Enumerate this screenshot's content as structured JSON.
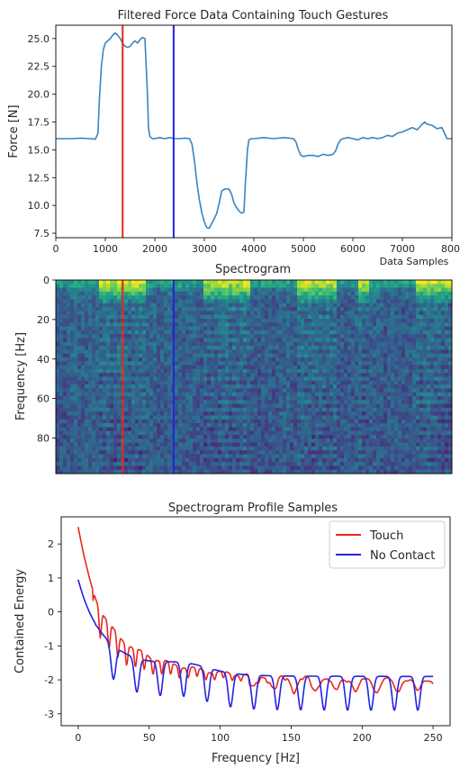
{
  "chart_data": [
    {
      "id": "force",
      "type": "line",
      "title": "Filtered Force Data Containing Touch Gestures",
      "xlabel": "Data Samples",
      "ylabel": "Force [N]",
      "xlim": [
        0,
        8000
      ],
      "ylim": [
        7.1,
        26.2
      ],
      "xticks": [
        "0",
        "1000",
        "2000",
        "3000",
        "4000",
        "5000",
        "6000",
        "7000",
        "8000"
      ],
      "yticks": [
        "7.5",
        "10.0",
        "12.5",
        "15.0",
        "17.5",
        "20.0",
        "22.5",
        "25.0"
      ],
      "grid": false,
      "series": [
        {
          "color": "#3b83bd",
          "x": [
            0,
            300,
            500,
            700,
            800,
            850,
            880,
            920,
            960,
            1000,
            1050,
            1100,
            1150,
            1200,
            1250,
            1300,
            1350,
            1400,
            1450,
            1500,
            1550,
            1600,
            1650,
            1700,
            1750,
            1800,
            1850,
            1870,
            1900,
            1950,
            2000,
            2100,
            2200,
            2300,
            2400,
            2500,
            2600,
            2700,
            2750,
            2800,
            2850,
            2900,
            2950,
            3000,
            3050,
            3100,
            3150,
            3200,
            3250,
            3300,
            3350,
            3400,
            3450,
            3500,
            3550,
            3600,
            3650,
            3700,
            3750,
            3800,
            3830,
            3870,
            3900,
            3950,
            4000,
            4200,
            4400,
            4600,
            4800,
            4850,
            4900,
            4950,
            5000,
            5100,
            5200,
            5300,
            5400,
            5500,
            5600,
            5650,
            5700,
            5750,
            5800,
            5900,
            6000,
            6100,
            6200,
            6300,
            6400,
            6500,
            6600,
            6700,
            6800,
            6900,
            7000,
            7100,
            7200,
            7300,
            7400,
            7450,
            7500,
            7600,
            7700,
            7800,
            7900,
            8000
          ],
          "y": [
            16.0,
            16.0,
            16.05,
            16.0,
            15.95,
            16.5,
            19.5,
            22.5,
            24.0,
            24.6,
            24.8,
            25.0,
            25.3,
            25.5,
            25.3,
            25.0,
            24.6,
            24.3,
            24.2,
            24.3,
            24.6,
            24.8,
            24.6,
            24.9,
            25.1,
            25.0,
            20.0,
            17.0,
            16.2,
            16.0,
            16.0,
            16.1,
            16.0,
            16.1,
            16.0,
            16.0,
            16.05,
            16.0,
            15.5,
            14.0,
            12.0,
            10.5,
            9.3,
            8.5,
            8.0,
            7.95,
            8.4,
            8.8,
            9.3,
            10.2,
            11.3,
            11.45,
            11.5,
            11.45,
            11.0,
            10.2,
            9.8,
            9.5,
            9.3,
            9.4,
            12.0,
            15.0,
            15.9,
            16.0,
            16.0,
            16.1,
            16.0,
            16.1,
            16.0,
            15.7,
            15.0,
            14.5,
            14.4,
            14.5,
            14.5,
            14.4,
            14.6,
            14.5,
            14.6,
            14.9,
            15.5,
            15.9,
            16.0,
            16.1,
            16.0,
            15.9,
            16.1,
            16.0,
            16.1,
            16.0,
            16.1,
            16.3,
            16.2,
            16.5,
            16.6,
            16.8,
            17.0,
            16.8,
            17.3,
            17.5,
            17.3,
            17.2,
            16.9,
            17.0,
            16.0,
            16.0
          ]
        }
      ],
      "markers": [
        {
          "color": "#e8271f",
          "x": 1350
        },
        {
          "color": "#2323e0",
          "x": 2380
        }
      ]
    },
    {
      "id": "spectrogram",
      "type": "heatmap",
      "title": "Spectrogram",
      "xlabel": "",
      "ylabel": "Frequency [Hz]",
      "xlim": [
        0,
        8000
      ],
      "ylim": [
        98,
        0
      ],
      "yticks": [
        "0",
        "20",
        "40",
        "60",
        "80"
      ],
      "grid": false,
      "colormap": "viridis",
      "high_energy_ranges": [
        [
          900,
          1850
        ],
        [
          2950,
          3950
        ],
        [
          4850,
          5700
        ],
        [
          6100,
          6350
        ],
        [
          7300,
          8000
        ]
      ],
      "markers": [
        {
          "color": "#e8271f",
          "x": 1350
        },
        {
          "color": "#2323e0",
          "x": 2380
        }
      ]
    },
    {
      "id": "profile",
      "type": "line",
      "title": "Spectrogram Profile Samples",
      "xlabel": "Frequency [Hz]",
      "ylabel": "Contained Energy",
      "xlim": [
        -12,
        262
      ],
      "ylim": [
        -3.35,
        2.8
      ],
      "xticks": [
        "0",
        "50",
        "100",
        "150",
        "200",
        "250"
      ],
      "yticks": [
        "-3",
        "-2",
        "-1",
        "0",
        "1",
        "2"
      ],
      "grid": false,
      "legend": "top-right",
      "series": [
        {
          "name": "Touch",
          "color": "#e8271f"
        },
        {
          "name": "No Contact",
          "color": "#2323e0"
        }
      ]
    }
  ]
}
